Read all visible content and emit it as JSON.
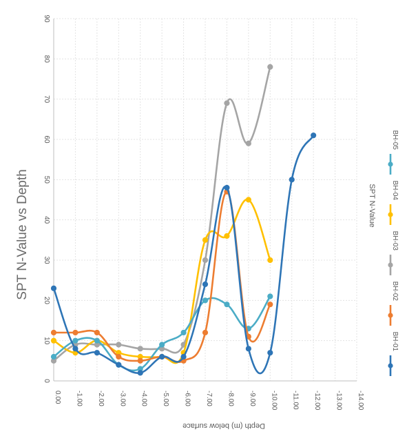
{
  "chart_data": {
    "type": "line",
    "title": "SPT N-Value vs Depth",
    "xlabel": "Depth (m) below surface",
    "ylabel": "",
    "legend_title": "SPT N-Value",
    "legend_position": "right",
    "orientation": "rotated-90-clockwise",
    "grid": true,
    "xlim": [
      0,
      -14
    ],
    "ylim": [
      0,
      90
    ],
    "x_ticks": [
      "0.00",
      "-1.00",
      "-2.00",
      "-3.00",
      "-4.00",
      "-5.00",
      "-6.00",
      "-7.00",
      "-8.00",
      "-9.00",
      "-10.00",
      "-11.00",
      "-12.00",
      "-13.00",
      "-14.00"
    ],
    "y_ticks": [
      "0",
      "10",
      "20",
      "30",
      "40",
      "50",
      "60",
      "70",
      "80",
      "90"
    ],
    "series": [
      {
        "name": "BH-01",
        "color": "#2E75B6",
        "x": [
          0,
          -1,
          -2,
          -3,
          -4,
          -5,
          -6,
          -7,
          -8,
          -9,
          -10,
          -11,
          -12
        ],
        "y": [
          23,
          8,
          7,
          4,
          2,
          6,
          6,
          24,
          48,
          8,
          7,
          50,
          61
        ]
      },
      {
        "name": "BH-02",
        "color": "#ED7D31",
        "x": [
          0,
          -1,
          -2,
          -3,
          -4,
          -5,
          -6,
          -7,
          -8,
          -9,
          -10
        ],
        "y": [
          12,
          12,
          12,
          6,
          5,
          6,
          5,
          12,
          47,
          11,
          19
        ]
      },
      {
        "name": "BH-03",
        "color": "#A5A5A5",
        "x": [
          0,
          -1,
          -2,
          -3,
          -4,
          -5,
          -6,
          -7,
          -8,
          -9,
          -10
        ],
        "y": [
          5,
          9,
          9,
          9,
          8,
          8,
          9,
          30,
          69,
          59,
          78
        ]
      },
      {
        "name": "BH-04",
        "color": "#FFC000",
        "x": [
          0,
          -1,
          -2,
          -3,
          -4,
          -5,
          -6,
          -7,
          -8,
          -9,
          -10
        ],
        "y": [
          10,
          7,
          10,
          7,
          6,
          6,
          7,
          35,
          36,
          45,
          30
        ]
      },
      {
        "name": "BH-05",
        "color": "#4BACC6",
        "x": [
          0,
          -1,
          -2,
          -3,
          -4,
          -5,
          -6,
          -7,
          -8,
          -9,
          -10
        ],
        "y": [
          6,
          10,
          10,
          4,
          3,
          9,
          12,
          20,
          19,
          13,
          21
        ]
      }
    ]
  }
}
